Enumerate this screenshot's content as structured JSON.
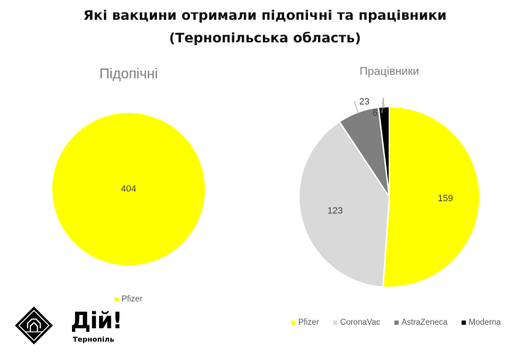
{
  "page": {
    "title_line1": "Які вакцини отримали підопічні та працівники",
    "title_line2": "(Тернопільська область)"
  },
  "chart_data": [
    {
      "type": "pie",
      "title": "Підопічні",
      "categories": [
        "Pfizer"
      ],
      "values": [
        404
      ],
      "colors": [
        "#ffff00"
      ],
      "legend": "bottom"
    },
    {
      "type": "pie",
      "title": "Працівники",
      "categories": [
        "Pfizer",
        "CoronaVac",
        "AstraZeneca",
        "Moderna"
      ],
      "values": [
        159,
        123,
        23,
        6
      ],
      "colors": [
        "#ffff00",
        "#d9d9d9",
        "#7f7f7f",
        "#000000"
      ],
      "legend": "bottom"
    }
  ],
  "logos": {
    "pin": "people-in-need-logo",
    "diy_text": "Дій!",
    "diy_subtitle": "Тернопіль"
  }
}
